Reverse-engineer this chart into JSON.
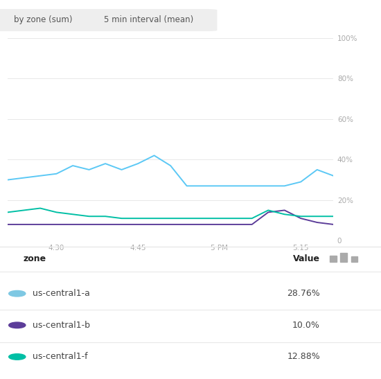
{
  "title_buttons": [
    "by zone (sum)",
    "5 min interval (mean)"
  ],
  "x_ticks_labels": [
    "4:30",
    "4:45",
    "5 PM",
    "5:15"
  ],
  "y_ticks": [
    0,
    20,
    40,
    60,
    80,
    100
  ],
  "y_tick_labels": [
    "0",
    "20%",
    "40%",
    "60%",
    "80%",
    "100%"
  ],
  "series": [
    {
      "name": "us-central1-a",
      "color": "#5BC8F5",
      "value": "28.76%",
      "dot_color": "#7EC8E3",
      "x": [
        0,
        1,
        2,
        3,
        4,
        5,
        6,
        7,
        8,
        9,
        10,
        11,
        12,
        13,
        14,
        15,
        16,
        17,
        18,
        19,
        20
      ],
      "y": [
        30,
        31,
        32,
        33,
        37,
        35,
        38,
        35,
        38,
        42,
        37,
        27,
        27,
        27,
        27,
        27,
        27,
        27,
        29,
        35,
        32
      ]
    },
    {
      "name": "us-central1-b",
      "color": "#5C3D99",
      "value": "10.0%",
      "dot_color": "#5C3D99",
      "x": [
        0,
        1,
        2,
        3,
        4,
        5,
        6,
        7,
        8,
        9,
        10,
        11,
        12,
        13,
        14,
        15,
        16,
        17,
        18,
        19,
        20
      ],
      "y": [
        8,
        8,
        8,
        8,
        8,
        8,
        8,
        8,
        8,
        8,
        8,
        8,
        8,
        8,
        8,
        8,
        14,
        15,
        11,
        9,
        8
      ]
    },
    {
      "name": "us-central1-f",
      "color": "#00BFA5",
      "value": "12.88%",
      "dot_color": "#00BFA5",
      "x": [
        0,
        1,
        2,
        3,
        4,
        5,
        6,
        7,
        8,
        9,
        10,
        11,
        12,
        13,
        14,
        15,
        16,
        17,
        18,
        19,
        20
      ],
      "y": [
        14,
        15,
        16,
        14,
        13,
        12,
        12,
        11,
        11,
        11,
        11,
        11,
        11,
        11,
        11,
        11,
        15,
        13,
        12,
        12,
        12
      ]
    }
  ],
  "bg_color": "#ffffff",
  "grid_color": "#e8e8e8",
  "axis_label_color": "#aaaaaa",
  "button_bg": "#eeeeee",
  "button_text_color": "#555555",
  "legend_rows": [
    {
      "label": "us-central1-a",
      "value": "28.76%",
      "color": "#7EC8E3"
    },
    {
      "label": "us-central1-b",
      "value": "10.0%",
      "color": "#5C3D99"
    },
    {
      "label": "us-central1-f",
      "value": "12.88%",
      "color": "#00BFA5"
    }
  ]
}
